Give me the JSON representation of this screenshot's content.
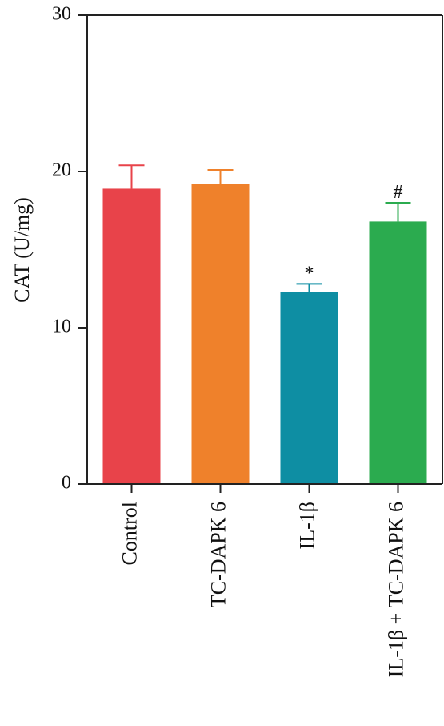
{
  "chart_data": {
    "type": "bar",
    "ylabel": "CAT (U/mg)",
    "ylim": [
      0,
      30
    ],
    "yticks": [
      0,
      10,
      20,
      30
    ],
    "grid": false,
    "categories": [
      "Control",
      "TC-DAPK 6",
      "IL-1β",
      "IL-1β + TC-DAPK 6"
    ],
    "values": [
      18.9,
      19.2,
      12.3,
      16.8
    ],
    "errors": [
      1.5,
      0.9,
      0.5,
      1.2
    ],
    "annotations": [
      "",
      "",
      "*",
      "#"
    ],
    "colors": [
      "#e8434a",
      "#ef812b",
      "#0e8ea3",
      "#2bab4f"
    ]
  }
}
